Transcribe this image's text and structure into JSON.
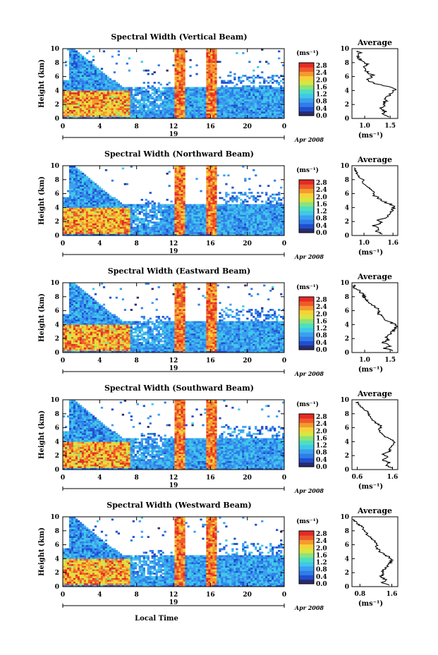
{
  "chart_data": {
    "type": "heatmap",
    "colorscale": [
      "#2b2a6e",
      "#1f4fcf",
      "#2f7de8",
      "#3aa0f0",
      "#40c8e8",
      "#4ce0c0",
      "#8ee27a",
      "#d8e640",
      "#f6d23a",
      "#f49a30",
      "#ee5a2a",
      "#e52a24"
    ],
    "xlabel": "Local Time",
    "ylabel": "Height (km)",
    "x_ticks": [
      "0",
      "4",
      "8",
      "12",
      "16",
      "20",
      "0"
    ],
    "y_ticks": [
      "0",
      "2",
      "4",
      "6",
      "8",
      "10"
    ],
    "date_label": "Apr 2008",
    "day_label": "19",
    "colorbar_unit": "(ms⁻¹)",
    "colorbar_ticks": [
      "2.8",
      "2.4",
      "2.0",
      "1.6",
      "1.2",
      "0.8",
      "0.4",
      "0.0"
    ],
    "average_title": "Average",
    "average_xlabel": "(ms⁻¹)",
    "average_y_ticks": [
      "0",
      "2",
      "4",
      "6",
      "8",
      "10"
    ],
    "panels": [
      {
        "title": "Spectral Width (Vertical Beam)",
        "average_x_ticks": [
          "1.0",
          "1.5"
        ],
        "average_xlim": [
          0.75,
          1.65
        ],
        "average_profile": {
          "height": [
            0.2,
            0.6,
            1.0,
            1.4,
            1.8,
            2.2,
            2.6,
            3.0,
            3.4,
            3.8,
            4.2,
            4.6,
            5.0,
            5.4,
            5.8,
            6.2,
            6.6,
            7.0,
            7.4,
            7.8,
            8.2,
            8.6,
            9.0,
            9.4,
            9.8
          ],
          "width": [
            1.5,
            1.35,
            1.42,
            1.3,
            1.4,
            1.35,
            1.45,
            1.38,
            1.5,
            1.55,
            1.6,
            1.45,
            1.2,
            1.05,
            1.1,
            1.15,
            1.05,
            1.0,
            0.98,
            1.05,
            0.95,
            0.9,
            0.85,
            0.9,
            0.8
          ]
        }
      },
      {
        "title": "Spectral Width (Northward Beam)",
        "average_x_ticks": [
          "1.0",
          "1.6"
        ],
        "average_xlim": [
          0.75,
          1.7
        ],
        "average_profile": {
          "height": [
            0.2,
            0.6,
            1.0,
            1.4,
            1.8,
            2.2,
            2.6,
            3.0,
            3.4,
            3.8,
            4.2,
            4.6,
            5.0,
            5.4,
            5.8,
            6.2,
            6.6,
            7.0,
            7.4,
            7.8,
            8.2,
            8.6,
            9.0,
            9.4,
            9.8
          ],
          "width": [
            1.4,
            1.25,
            1.3,
            1.2,
            1.35,
            1.3,
            1.45,
            1.5,
            1.55,
            1.6,
            1.65,
            1.5,
            1.35,
            1.3,
            1.2,
            1.25,
            1.15,
            1.05,
            1.0,
            1.0,
            0.95,
            0.9,
            0.85,
            0.82,
            0.8
          ]
        }
      },
      {
        "title": "Spectral Width (Eastward Beam)",
        "average_x_ticks": [
          "1.0",
          "1.5"
        ],
        "average_xlim": [
          0.75,
          1.65
        ],
        "average_profile": {
          "height": [
            0.2,
            0.6,
            1.0,
            1.4,
            1.8,
            2.2,
            2.6,
            3.0,
            3.4,
            3.8,
            4.2,
            4.6,
            5.0,
            5.4,
            5.8,
            6.2,
            6.6,
            7.0,
            7.4,
            7.8,
            8.2,
            8.6,
            9.0,
            9.4,
            9.8
          ],
          "width": [
            1.55,
            1.4,
            1.5,
            1.35,
            1.45,
            1.4,
            1.5,
            1.55,
            1.6,
            1.62,
            1.55,
            1.45,
            1.35,
            1.3,
            1.25,
            1.3,
            1.2,
            1.1,
            1.05,
            1.0,
            0.98,
            0.92,
            0.85,
            0.8,
            0.78
          ]
        }
      },
      {
        "title": "Spectral Width (Southward Beam)",
        "average_x_ticks": [
          "0.6",
          "1.6"
        ],
        "average_xlim": [
          0.45,
          1.75
        ],
        "average_profile": {
          "height": [
            0.2,
            0.6,
            1.0,
            1.4,
            1.8,
            2.2,
            2.6,
            3.0,
            3.4,
            3.8,
            4.2,
            4.6,
            5.0,
            5.4,
            5.8,
            6.2,
            6.6,
            7.0,
            7.4,
            7.8,
            8.2,
            8.6,
            9.0,
            9.4,
            9.8
          ],
          "width": [
            1.6,
            1.4,
            1.5,
            1.3,
            1.45,
            1.35,
            1.5,
            1.55,
            1.6,
            1.65,
            1.6,
            1.45,
            1.3,
            1.25,
            1.2,
            1.3,
            1.15,
            1.05,
            1.0,
            0.95,
            0.9,
            0.8,
            0.7,
            0.62,
            0.6
          ]
        }
      },
      {
        "title": "Spectral Width (Westward Beam)",
        "average_x_ticks": [
          "0.8",
          "1.6"
        ],
        "average_xlim": [
          0.6,
          1.75
        ],
        "average_profile": {
          "height": [
            0.2,
            0.6,
            1.0,
            1.4,
            1.8,
            2.2,
            2.6,
            3.0,
            3.4,
            3.8,
            4.2,
            4.6,
            5.0,
            5.4,
            5.8,
            6.2,
            6.6,
            7.0,
            7.4,
            7.8,
            8.2,
            8.6,
            9.0,
            9.4,
            9.8
          ],
          "width": [
            1.55,
            1.35,
            1.45,
            1.3,
            1.4,
            1.35,
            1.45,
            1.5,
            1.55,
            1.6,
            1.55,
            1.4,
            1.3,
            1.25,
            1.2,
            1.25,
            1.15,
            1.05,
            1.0,
            0.95,
            0.9,
            0.85,
            0.75,
            0.68,
            0.62
          ]
        }
      }
    ]
  }
}
